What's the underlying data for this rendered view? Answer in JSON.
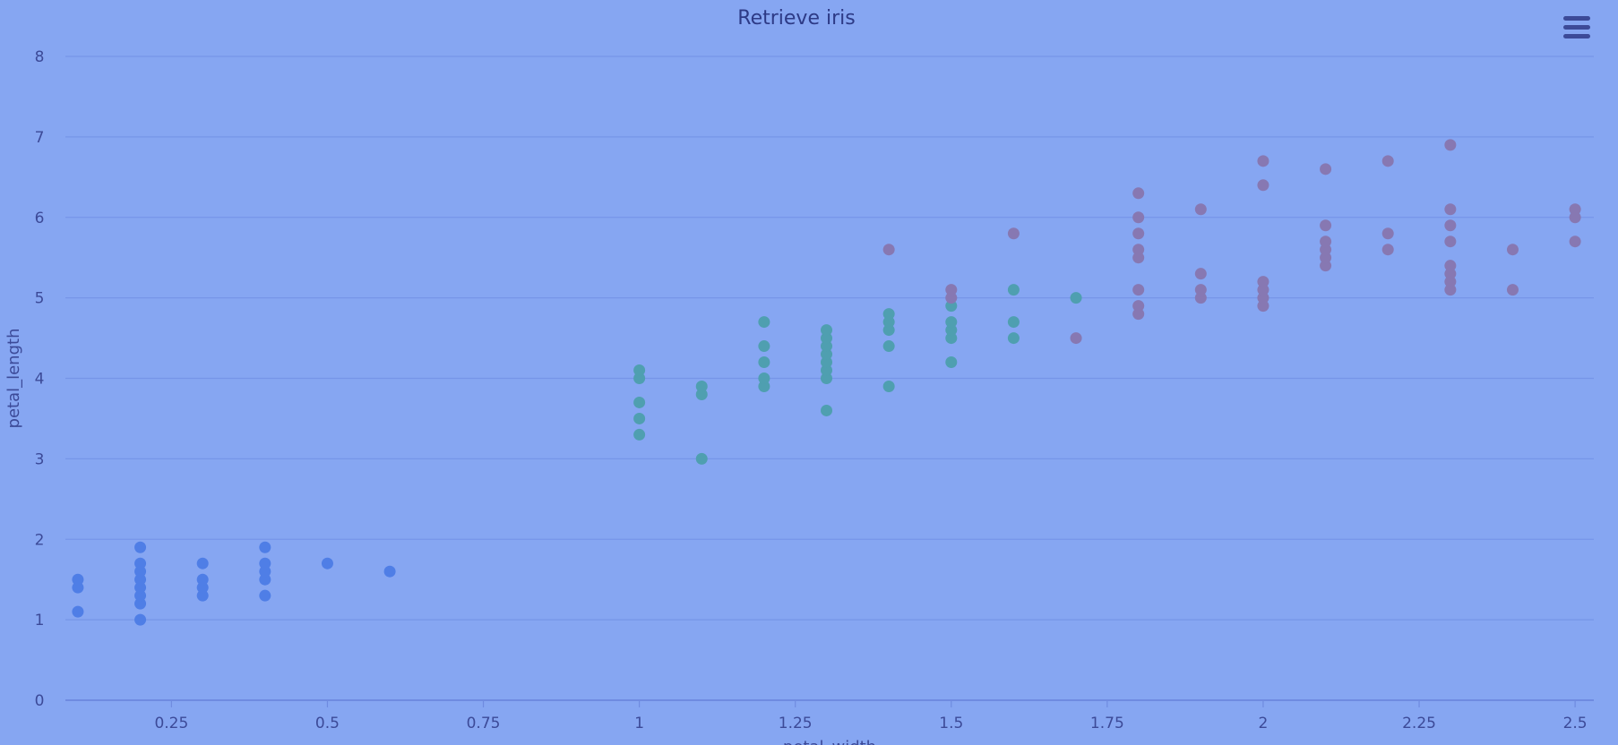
{
  "chart_data": {
    "type": "scatter",
    "title": "Retrieve iris",
    "xlabel": "petal_width",
    "ylabel": "petal_length",
    "xlim": [
      0.08,
      2.53
    ],
    "ylim": [
      0,
      8
    ],
    "x_ticks": [
      0.25,
      0.5,
      0.75,
      1,
      1.25,
      1.5,
      1.75,
      2,
      2.25,
      2.5
    ],
    "x_tick_labels": [
      "0.25",
      "0.5",
      "0.75",
      "1",
      "1.25",
      "1.5",
      "1.75",
      "2",
      "2.25",
      "2.5"
    ],
    "y_ticks": [
      0,
      1,
      2,
      3,
      4,
      5,
      6,
      7,
      8
    ],
    "y_tick_labels": [
      "0",
      "1",
      "2",
      "3",
      "4",
      "5",
      "6",
      "7",
      "8"
    ],
    "grid": true,
    "legend": false,
    "series": [
      {
        "color": "#4f7ee6",
        "points": [
          [
            0.1,
            1.1
          ],
          [
            0.1,
            1.4
          ],
          [
            0.1,
            1.5
          ],
          [
            0.2,
            1.0
          ],
          [
            0.2,
            1.2
          ],
          [
            0.2,
            1.3
          ],
          [
            0.2,
            1.4
          ],
          [
            0.2,
            1.5
          ],
          [
            0.2,
            1.6
          ],
          [
            0.2,
            1.7
          ],
          [
            0.2,
            1.9
          ],
          [
            0.3,
            1.3
          ],
          [
            0.3,
            1.4
          ],
          [
            0.3,
            1.5
          ],
          [
            0.3,
            1.7
          ],
          [
            0.4,
            1.3
          ],
          [
            0.4,
            1.5
          ],
          [
            0.4,
            1.6
          ],
          [
            0.4,
            1.7
          ],
          [
            0.4,
            1.9
          ],
          [
            0.5,
            1.7
          ],
          [
            0.6,
            1.6
          ]
        ]
      },
      {
        "color": "#4f9fb0",
        "points": [
          [
            1.0,
            3.3
          ],
          [
            1.0,
            3.5
          ],
          [
            1.0,
            3.7
          ],
          [
            1.0,
            4.0
          ],
          [
            1.0,
            4.1
          ],
          [
            1.1,
            3.0
          ],
          [
            1.1,
            3.8
          ],
          [
            1.1,
            3.9
          ],
          [
            1.2,
            3.9
          ],
          [
            1.2,
            4.0
          ],
          [
            1.2,
            4.2
          ],
          [
            1.2,
            4.4
          ],
          [
            1.2,
            4.7
          ],
          [
            1.3,
            3.6
          ],
          [
            1.3,
            4.0
          ],
          [
            1.3,
            4.1
          ],
          [
            1.3,
            4.2
          ],
          [
            1.3,
            4.3
          ],
          [
            1.3,
            4.4
          ],
          [
            1.3,
            4.5
          ],
          [
            1.3,
            4.6
          ],
          [
            1.4,
            3.9
          ],
          [
            1.4,
            4.4
          ],
          [
            1.4,
            4.6
          ],
          [
            1.4,
            4.7
          ],
          [
            1.4,
            4.8
          ],
          [
            1.5,
            4.2
          ],
          [
            1.5,
            4.5
          ],
          [
            1.5,
            4.6
          ],
          [
            1.5,
            4.7
          ],
          [
            1.5,
            4.9
          ],
          [
            1.6,
            4.5
          ],
          [
            1.6,
            4.7
          ],
          [
            1.6,
            5.1
          ],
          [
            1.7,
            5.0
          ]
        ]
      },
      {
        "color": "#8778b2",
        "points": [
          [
            1.4,
            5.6
          ],
          [
            1.5,
            5.0
          ],
          [
            1.5,
            5.1
          ],
          [
            1.6,
            5.8
          ],
          [
            1.7,
            4.5
          ],
          [
            1.8,
            4.8
          ],
          [
            1.8,
            4.9
          ],
          [
            1.8,
            5.1
          ],
          [
            1.8,
            5.5
          ],
          [
            1.8,
            5.6
          ],
          [
            1.8,
            5.8
          ],
          [
            1.8,
            6.0
          ],
          [
            1.8,
            6.3
          ],
          [
            1.9,
            5.0
          ],
          [
            1.9,
            5.1
          ],
          [
            1.9,
            5.3
          ],
          [
            1.9,
            6.1
          ],
          [
            2.0,
            4.9
          ],
          [
            2.0,
            5.0
          ],
          [
            2.0,
            5.1
          ],
          [
            2.0,
            5.2
          ],
          [
            2.0,
            6.4
          ],
          [
            2.0,
            6.7
          ],
          [
            2.1,
            5.4
          ],
          [
            2.1,
            5.5
          ],
          [
            2.1,
            5.6
          ],
          [
            2.1,
            5.7
          ],
          [
            2.1,
            5.9
          ],
          [
            2.1,
            6.6
          ],
          [
            2.2,
            5.6
          ],
          [
            2.2,
            5.8
          ],
          [
            2.2,
            6.7
          ],
          [
            2.3,
            5.1
          ],
          [
            2.3,
            5.2
          ],
          [
            2.3,
            5.3
          ],
          [
            2.3,
            5.4
          ],
          [
            2.3,
            5.7
          ],
          [
            2.3,
            5.9
          ],
          [
            2.3,
            6.1
          ],
          [
            2.3,
            6.9
          ],
          [
            2.4,
            5.1
          ],
          [
            2.4,
            5.6
          ],
          [
            2.5,
            5.7
          ],
          [
            2.5,
            6.0
          ],
          [
            2.5,
            6.1
          ]
        ]
      }
    ]
  }
}
